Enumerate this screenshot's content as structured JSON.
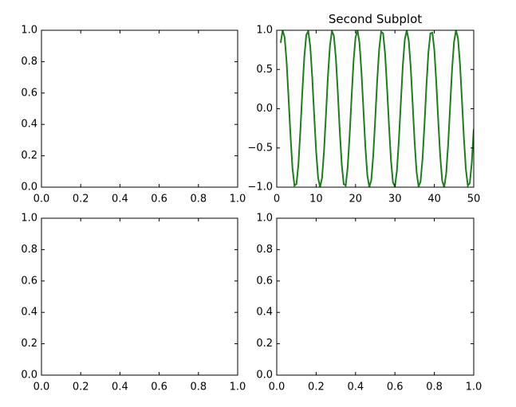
{
  "chart_data": [
    {
      "type": "line",
      "xlim": [
        0,
        1
      ],
      "ylim": [
        0,
        1
      ],
      "xticks": [
        {
          "value": 0,
          "label": "0.0"
        },
        {
          "value": 0.2,
          "label": "0.2"
        },
        {
          "value": 0.4,
          "label": "0.4"
        },
        {
          "value": 0.6,
          "label": "0.6"
        },
        {
          "value": 0.8,
          "label": "0.8"
        },
        {
          "value": 1,
          "label": "1.0"
        }
      ],
      "yticks": [
        {
          "value": 0,
          "label": "0.0"
        },
        {
          "value": 0.2,
          "label": "0.2"
        },
        {
          "value": 0.4,
          "label": "0.4"
        },
        {
          "value": 0.6,
          "label": "0.6"
        },
        {
          "value": 0.8,
          "label": "0.8"
        },
        {
          "value": 1,
          "label": "1.0"
        }
      ]
    },
    {
      "type": "line",
      "title": "Second Subplot",
      "xlim": [
        0,
        50
      ],
      "ylim": [
        -1,
        1
      ],
      "xticks": [
        0,
        10,
        20,
        30,
        40,
        50
      ],
      "yticks": [
        {
          "value": -1,
          "label": "−1.0"
        },
        {
          "value": -0.5,
          "label": "−0.5"
        },
        {
          "value": 0,
          "label": "0.0"
        },
        {
          "value": 0.5,
          "label": "0.5"
        },
        {
          "value": 1,
          "label": "1.0"
        }
      ],
      "x": [
        1,
        1.5,
        2,
        2.5,
        3,
        3.5,
        4,
        4.5,
        5,
        5.5,
        6,
        6.5,
        7,
        7.5,
        8,
        8.5,
        9,
        9.5,
        10,
        10.5,
        11,
        11.5,
        12,
        12.5,
        13,
        13.5,
        14,
        14.5,
        15,
        15.5,
        16,
        16.5,
        17,
        17.5,
        18,
        18.5,
        19,
        19.5,
        20,
        20.5,
        21,
        21.5,
        22,
        22.5,
        23,
        23.5,
        24,
        24.5,
        25,
        25.5,
        26,
        26.5,
        27,
        27.5,
        28,
        28.5,
        29,
        29.5,
        30,
        30.5,
        31,
        31.5,
        32,
        32.5,
        33,
        33.5,
        34,
        34.5,
        35,
        35.5,
        36,
        36.5,
        37,
        37.5,
        38,
        38.5,
        39,
        39.5,
        40,
        40.5,
        41,
        41.5,
        42,
        42.5,
        43,
        43.5,
        44,
        44.5,
        45,
        45.5,
        46,
        46.5,
        47,
        47.5,
        48,
        48.5,
        49,
        49.5,
        50
      ],
      "series": [
        {
          "color": "#1a801a",
          "values": [
            0.84,
            1.0,
            0.91,
            0.6,
            0.14,
            -0.35,
            -0.76,
            -0.98,
            -0.96,
            -0.71,
            -0.28,
            0.22,
            0.66,
            0.94,
            0.99,
            0.8,
            0.41,
            -0.08,
            -0.54,
            -0.88,
            -1.0,
            -0.88,
            -0.54,
            -0.07,
            0.42,
            0.8,
            0.99,
            0.93,
            0.65,
            0.21,
            -0.29,
            -0.71,
            -0.96,
            -0.98,
            -0.75,
            -0.34,
            0.15,
            0.61,
            0.91,
            1.0,
            0.84,
            0.47,
            -0.01,
            -0.49,
            -0.85,
            -1.0,
            -0.91,
            -0.59,
            -0.13,
            0.36,
            0.76,
            0.98,
            0.96,
            0.7,
            0.27,
            -0.22,
            -0.66,
            -0.94,
            -0.99,
            -0.79,
            -0.4,
            0.08,
            0.55,
            0.88,
            1.0,
            0.87,
            0.53,
            0.06,
            -0.43,
            -0.81,
            -0.99,
            -0.93,
            -0.64,
            -0.2,
            0.3,
            0.72,
            0.96,
            0.97,
            0.75,
            0.33,
            -0.16,
            -0.61,
            -0.92,
            -1.0,
            -0.83,
            -0.46,
            0.02,
            0.5,
            0.85,
            1.0,
            0.9,
            0.58,
            0.12,
            -0.37,
            -0.77,
            -0.98,
            -0.95,
            -0.69,
            -0.26
          ]
        }
      ]
    },
    {
      "type": "line",
      "xlim": [
        0,
        1
      ],
      "ylim": [
        0,
        1
      ],
      "xticks": [
        {
          "value": 0,
          "label": "0.0"
        },
        {
          "value": 0.2,
          "label": "0.2"
        },
        {
          "value": 0.4,
          "label": "0.4"
        },
        {
          "value": 0.6,
          "label": "0.6"
        },
        {
          "value": 0.8,
          "label": "0.8"
        },
        {
          "value": 1,
          "label": "1.0"
        }
      ],
      "yticks": [
        {
          "value": 0,
          "label": "0.0"
        },
        {
          "value": 0.2,
          "label": "0.2"
        },
        {
          "value": 0.4,
          "label": "0.4"
        },
        {
          "value": 0.6,
          "label": "0.6"
        },
        {
          "value": 0.8,
          "label": "0.8"
        },
        {
          "value": 1,
          "label": "1.0"
        }
      ]
    },
    {
      "type": "line",
      "xlim": [
        0,
        1
      ],
      "ylim": [
        0,
        1
      ],
      "xticks": [
        {
          "value": 0,
          "label": "0.0"
        },
        {
          "value": 0.2,
          "label": "0.2"
        },
        {
          "value": 0.4,
          "label": "0.4"
        },
        {
          "value": 0.6,
          "label": "0.6"
        },
        {
          "value": 0.8,
          "label": "0.8"
        },
        {
          "value": 1,
          "label": "1.0"
        }
      ],
      "yticks": [
        {
          "value": 0,
          "label": "0.0"
        },
        {
          "value": 0.2,
          "label": "0.2"
        },
        {
          "value": 0.4,
          "label": "0.4"
        },
        {
          "value": 0.6,
          "label": "0.6"
        },
        {
          "value": 0.8,
          "label": "0.8"
        },
        {
          "value": 1,
          "label": "1.0"
        }
      ]
    }
  ]
}
